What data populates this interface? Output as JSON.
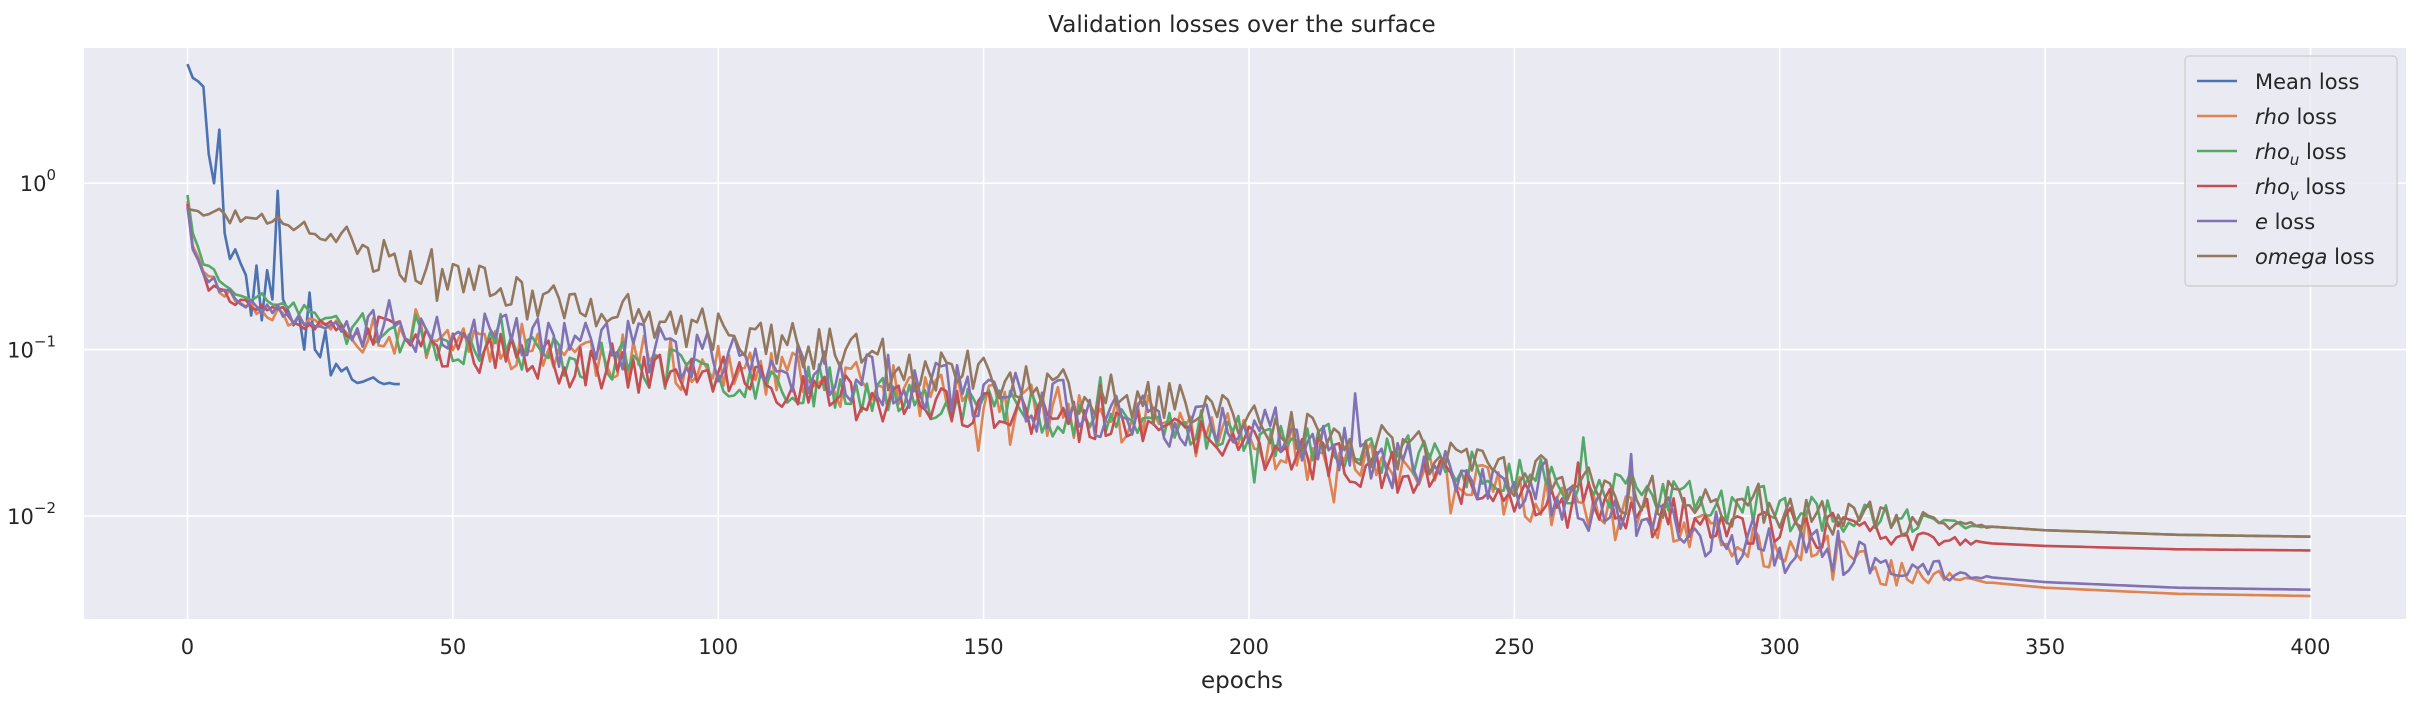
{
  "chart_data": {
    "type": "line",
    "title": "Validation losses over the surface",
    "xlabel": "epochs",
    "ylabel": "",
    "yscale": "log",
    "xlim": [
      -19.5,
      418
    ],
    "ylim": [
      0.0024,
      6.5
    ],
    "x_ticks": [
      0,
      50,
      100,
      150,
      200,
      250,
      300,
      350,
      400
    ],
    "x_tick_labels": [
      "0",
      "50",
      "100",
      "150",
      "200",
      "250",
      "300",
      "350",
      "400"
    ],
    "y_ticks": [
      {
        "value": 1,
        "base": "10",
        "exp": "0"
      },
      {
        "value": 0.1,
        "base": "10",
        "exp": "−1"
      },
      {
        "value": 0.01,
        "base": "10",
        "exp": "−2"
      }
    ],
    "grid": true,
    "legend_position": "top-right",
    "series": [
      {
        "name": "Mean loss",
        "legend": {
          "italic": "",
          "sub": "",
          "rest": "Mean loss"
        },
        "color": "#4c72b0",
        "anchors": [
          [
            0,
            5.2
          ],
          [
            1,
            4.3
          ],
          [
            2,
            4.1
          ],
          [
            3,
            3.8
          ],
          [
            4,
            1.5
          ],
          [
            5,
            1.0
          ],
          [
            6,
            2.1
          ],
          [
            7,
            0.5
          ],
          [
            8,
            0.35
          ],
          [
            9,
            0.4
          ],
          [
            10,
            0.33
          ],
          [
            11,
            0.28
          ],
          [
            12,
            0.16
          ],
          [
            13,
            0.32
          ],
          [
            14,
            0.15
          ],
          [
            15,
            0.3
          ],
          [
            16,
            0.2
          ],
          [
            17,
            0.9
          ],
          [
            18,
            0.2
          ],
          [
            19,
            0.17
          ],
          [
            20,
            0.14
          ],
          [
            21,
            0.16
          ],
          [
            22,
            0.1
          ],
          [
            23,
            0.22
          ],
          [
            24,
            0.1
          ],
          [
            25,
            0.09
          ],
          [
            26,
            0.13
          ],
          [
            27,
            0.07
          ],
          [
            28,
            0.082
          ],
          [
            29,
            0.074
          ],
          [
            30,
            0.078
          ],
          [
            31,
            0.066
          ],
          [
            32,
            0.063
          ],
          [
            33,
            0.064
          ],
          [
            34,
            0.066
          ],
          [
            35,
            0.068
          ],
          [
            36,
            0.064
          ],
          [
            37,
            0.062
          ],
          [
            38,
            0.063
          ],
          [
            39,
            0.062
          ],
          [
            40,
            0.062
          ]
        ]
      },
      {
        "name": "rho loss",
        "legend": {
          "italic": "rho",
          "sub": "",
          "rest": " loss"
        },
        "color": "#dd8452",
        "anchors": [
          [
            0,
            0.78
          ],
          [
            1,
            0.42
          ],
          [
            3,
            0.31
          ],
          [
            6,
            0.24
          ],
          [
            10,
            0.19
          ],
          [
            20,
            0.15
          ],
          [
            30,
            0.135
          ],
          [
            50,
            0.12
          ],
          [
            75,
            0.095
          ],
          [
            100,
            0.075
          ],
          [
            125,
            0.062
          ],
          [
            150,
            0.048
          ],
          [
            175,
            0.038
          ],
          [
            200,
            0.029
          ],
          [
            225,
            0.02
          ],
          [
            250,
            0.013
          ],
          [
            275,
            0.0087
          ],
          [
            300,
            0.0062
          ],
          [
            325,
            0.0044
          ],
          [
            350,
            0.0037
          ],
          [
            375,
            0.0034
          ],
          [
            400,
            0.0033
          ]
        ],
        "noise_amp": 0.35,
        "seed": 11
      },
      {
        "name": "rho_u loss",
        "legend": {
          "italic": "rho",
          "sub": "u",
          "rest": " loss"
        },
        "color": "#55a868",
        "anchors": [
          [
            0,
            0.85
          ],
          [
            1,
            0.5
          ],
          [
            3,
            0.34
          ],
          [
            6,
            0.27
          ],
          [
            10,
            0.22
          ],
          [
            20,
            0.18
          ],
          [
            30,
            0.14
          ],
          [
            50,
            0.11
          ],
          [
            75,
            0.088
          ],
          [
            100,
            0.07
          ],
          [
            125,
            0.058
          ],
          [
            150,
            0.047
          ],
          [
            175,
            0.038
          ],
          [
            200,
            0.031
          ],
          [
            225,
            0.024
          ],
          [
            250,
            0.018
          ],
          [
            275,
            0.0135
          ],
          [
            300,
            0.011
          ],
          [
            320,
            0.0095
          ],
          [
            350,
            0.0082
          ],
          [
            375,
            0.0077
          ],
          [
            400,
            0.0075
          ]
        ],
        "noise_amp": 0.3,
        "seed": 23
      },
      {
        "name": "rho_v loss",
        "legend": {
          "italic": "rho",
          "sub": "v",
          "rest": " loss"
        },
        "color": "#c44e52",
        "anchors": [
          [
            0,
            0.75
          ],
          [
            1,
            0.4
          ],
          [
            3,
            0.3
          ],
          [
            6,
            0.23
          ],
          [
            10,
            0.19
          ],
          [
            20,
            0.15
          ],
          [
            30,
            0.13
          ],
          [
            50,
            0.1
          ],
          [
            75,
            0.08
          ],
          [
            100,
            0.065
          ],
          [
            125,
            0.052
          ],
          [
            150,
            0.042
          ],
          [
            175,
            0.034
          ],
          [
            200,
            0.026
          ],
          [
            225,
            0.019
          ],
          [
            250,
            0.014
          ],
          [
            275,
            0.0105
          ],
          [
            300,
            0.0084
          ],
          [
            325,
            0.0072
          ],
          [
            350,
            0.0066
          ],
          [
            375,
            0.0063
          ],
          [
            400,
            0.0062
          ]
        ],
        "noise_amp": 0.3,
        "seed": 37
      },
      {
        "name": "e loss",
        "legend": {
          "italic": "e",
          "sub": "",
          "rest": " loss"
        },
        "color": "#8172b3",
        "anchors": [
          [
            0,
            0.72
          ],
          [
            1,
            0.4
          ],
          [
            3,
            0.3
          ],
          [
            6,
            0.24
          ],
          [
            10,
            0.2
          ],
          [
            20,
            0.16
          ],
          [
            30,
            0.14
          ],
          [
            50,
            0.13
          ],
          [
            75,
            0.11
          ],
          [
            100,
            0.09
          ],
          [
            125,
            0.07
          ],
          [
            150,
            0.055
          ],
          [
            175,
            0.042
          ],
          [
            200,
            0.032
          ],
          [
            225,
            0.022
          ],
          [
            250,
            0.015
          ],
          [
            275,
            0.0095
          ],
          [
            300,
            0.0066
          ],
          [
            325,
            0.0047
          ],
          [
            350,
            0.004
          ],
          [
            375,
            0.0037
          ],
          [
            400,
            0.0036
          ]
        ],
        "noise_amp": 0.38,
        "seed": 53
      },
      {
        "name": "omega loss",
        "legend": {
          "italic": "omega",
          "sub": "",
          "rest": " loss"
        },
        "color": "#937860",
        "anchors": [
          [
            0,
            0.7
          ],
          [
            5,
            0.65
          ],
          [
            10,
            0.62
          ],
          [
            20,
            0.56
          ],
          [
            25,
            0.5
          ],
          [
            30,
            0.45
          ],
          [
            40,
            0.36
          ],
          [
            50,
            0.28
          ],
          [
            60,
            0.22
          ],
          [
            75,
            0.18
          ],
          [
            100,
            0.13
          ],
          [
            125,
            0.095
          ],
          [
            150,
            0.07
          ],
          [
            175,
            0.052
          ],
          [
            200,
            0.038
          ],
          [
            225,
            0.026
          ],
          [
            250,
            0.018
          ],
          [
            275,
            0.0135
          ],
          [
            300,
            0.011
          ],
          [
            320,
            0.0095
          ],
          [
            350,
            0.0082
          ],
          [
            375,
            0.0077
          ],
          [
            400,
            0.0075
          ]
        ],
        "noise_amp": 0.32,
        "seed": 71
      }
    ]
  }
}
